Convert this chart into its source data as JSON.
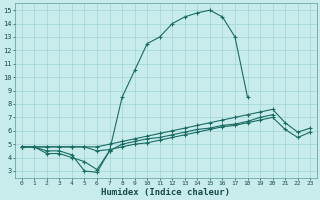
{
  "title": "",
  "xlabel": "Humidex (Indice chaleur)",
  "bg_color": "#c8ecec",
  "line_color": "#1a6b64",
  "grid_color": "#a0d4d4",
  "xlim": [
    -0.5,
    23.5
  ],
  "ylim": [
    2.5,
    15.5
  ],
  "xticks": [
    0,
    1,
    2,
    3,
    4,
    5,
    6,
    7,
    8,
    9,
    10,
    11,
    12,
    13,
    14,
    15,
    16,
    17,
    18,
    19,
    20,
    21,
    22,
    23
  ],
  "yticks": [
    3,
    4,
    5,
    6,
    7,
    8,
    9,
    10,
    11,
    12,
    13,
    14,
    15
  ],
  "lines": [
    {
      "x": [
        0,
        1,
        2,
        3,
        4,
        5,
        6,
        7,
        8,
        9,
        10,
        11,
        12,
        13,
        14,
        15,
        16,
        17,
        18,
        19,
        20,
        21,
        22,
        23
      ],
      "y": [
        4.8,
        4.8,
        4.5,
        4.5,
        4.2,
        3.0,
        2.9,
        4.5,
        8.5,
        10.5,
        12.5,
        13.0,
        14.0,
        14.5,
        14.8,
        15.0,
        14.5,
        13.0,
        8.5,
        null,
        null,
        null,
        null,
        null
      ]
    },
    {
      "x": [
        0,
        1,
        2,
        3,
        4,
        5,
        6,
        7,
        8,
        9,
        10,
        11,
        12,
        13,
        14,
        15,
        16,
        17,
        18,
        19,
        20,
        21,
        22,
        23
      ],
      "y": [
        4.8,
        4.8,
        4.8,
        4.8,
        4.8,
        4.8,
        4.8,
        5.0,
        5.2,
        5.4,
        5.6,
        5.8,
        6.0,
        6.2,
        6.4,
        6.6,
        6.8,
        7.0,
        7.2,
        7.4,
        7.6,
        6.6,
        5.9,
        6.2
      ]
    },
    {
      "x": [
        0,
        1,
        2,
        3,
        4,
        5,
        6,
        7,
        8,
        9,
        10,
        11,
        12,
        13,
        14,
        15,
        16,
        17,
        18,
        19,
        20,
        21,
        22,
        23
      ],
      "y": [
        4.8,
        4.8,
        4.8,
        4.8,
        4.8,
        4.8,
        4.5,
        4.6,
        4.8,
        5.0,
        5.1,
        5.3,
        5.5,
        5.7,
        5.9,
        6.1,
        6.3,
        6.4,
        6.6,
        6.8,
        7.0,
        6.1,
        5.5,
        5.9
      ]
    },
    {
      "x": [
        0,
        1,
        2,
        3,
        4,
        5,
        6,
        7,
        8,
        9,
        10,
        11,
        12,
        13,
        14,
        15,
        16,
        17,
        18,
        19,
        20,
        21,
        22,
        23
      ],
      "y": [
        4.8,
        4.8,
        4.3,
        4.3,
        4.0,
        3.7,
        3.1,
        4.5,
        5.0,
        5.2,
        5.4,
        5.5,
        5.7,
        5.9,
        6.1,
        6.2,
        6.4,
        6.5,
        6.7,
        7.0,
        7.2,
        null,
        null,
        null
      ]
    }
  ]
}
